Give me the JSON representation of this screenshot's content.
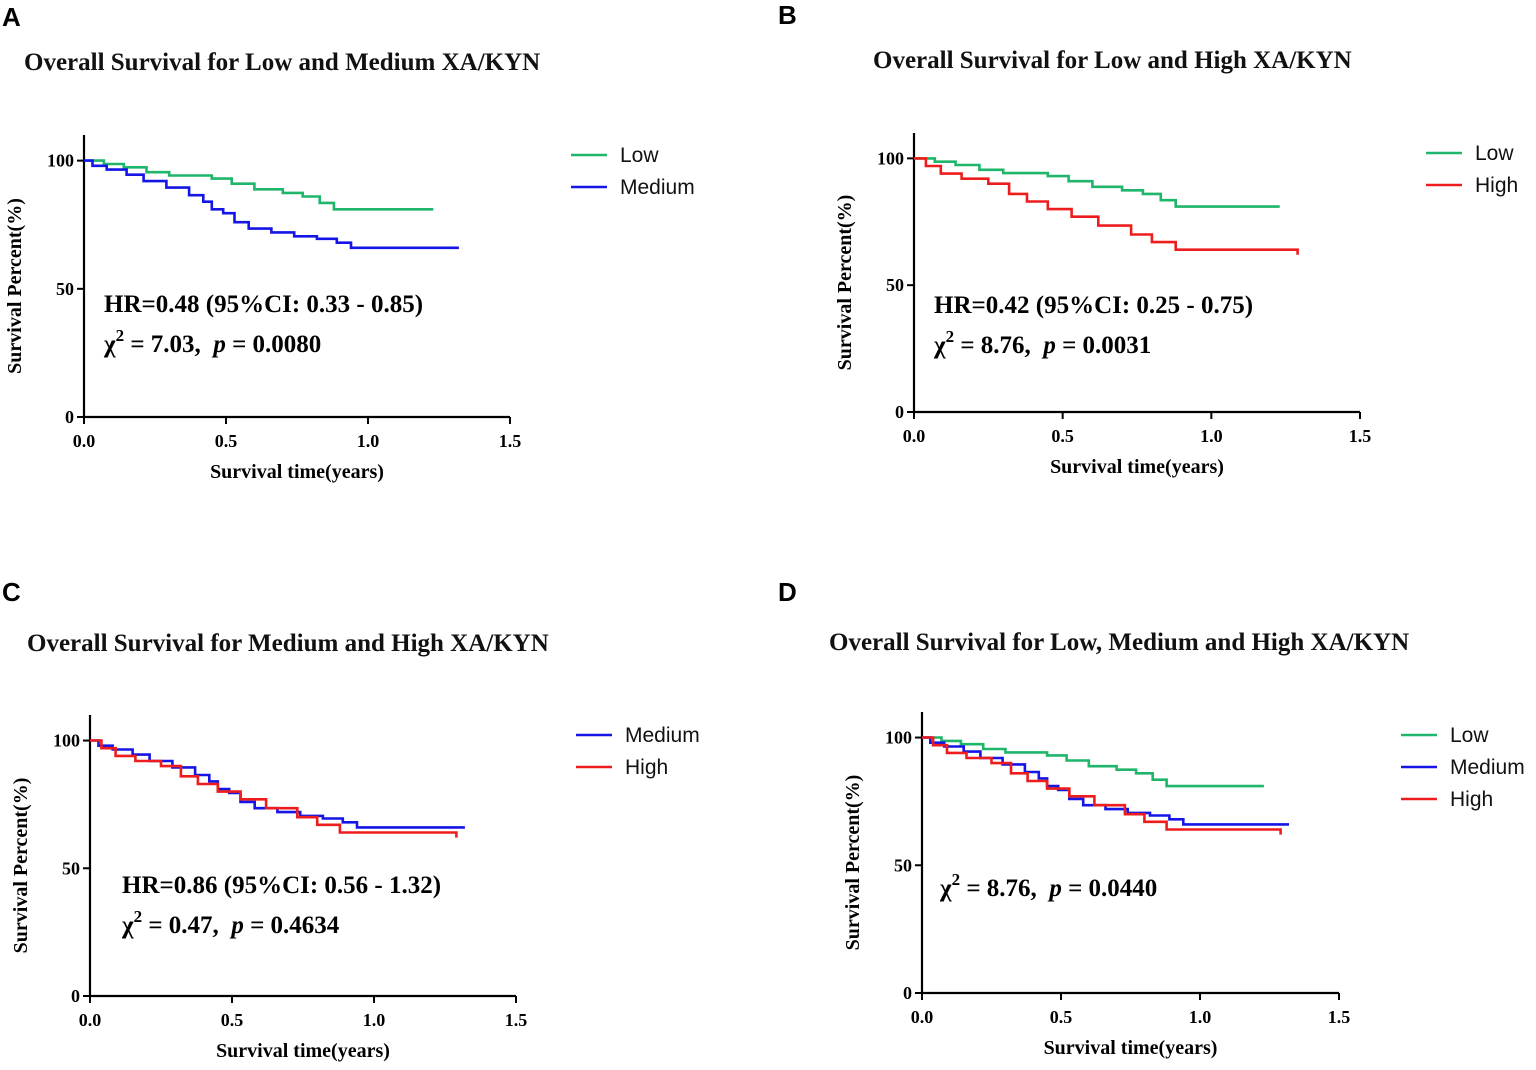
{
  "colors": {
    "Low": "#1fb56a",
    "Medium": "#1515e6",
    "High": "#ee1d1d"
  },
  "chart_data": [
    {
      "panel": "A",
      "type": "line",
      "title": "Overall Survival for Low and Medium XA/KYN",
      "xlabel": "Survival time(years)",
      "ylabel": "Survival Percent(%)",
      "xlim": [
        0,
        1.5
      ],
      "ylim": [
        0,
        110
      ],
      "xticks": [
        "0.0",
        "0.5",
        "1.0",
        "1.5"
      ],
      "yticks": [
        "0",
        "50",
        "100"
      ],
      "legend_position": "right",
      "series": [
        {
          "name": "Low",
          "x": [
            0,
            0.07,
            0.14,
            0.22,
            0.3,
            0.45,
            0.52,
            0.6,
            0.7,
            0.77,
            0.83,
            0.88,
            1.23
          ],
          "y": [
            100,
            98.7,
            97.4,
            95.5,
            94.2,
            93,
            91,
            88.8,
            87.4,
            86,
            83.5,
            81,
            81
          ]
        },
        {
          "name": "Medium",
          "x": [
            0,
            0.03,
            0.08,
            0.15,
            0.21,
            0.29,
            0.37,
            0.42,
            0.45,
            0.49,
            0.53,
            0.58,
            0.66,
            0.74,
            0.82,
            0.89,
            0.94,
            1.32
          ],
          "y": [
            100,
            98,
            96.5,
            94.5,
            92,
            89.5,
            86.5,
            84,
            81,
            79.5,
            76,
            73.5,
            72,
            70.5,
            69.5,
            68,
            66,
            66
          ]
        }
      ],
      "annotations": [
        "HR=0.48 (95%CI: 0.33 - 0.85)",
        "χ² = 7.03, p = 0.0080"
      ]
    },
    {
      "panel": "B",
      "type": "line",
      "title": "Overall Survival for Low and High XA/KYN",
      "xlabel": "Survival time(years)",
      "ylabel": "Survival Percent(%)",
      "xlim": [
        0,
        1.5
      ],
      "ylim": [
        0,
        110
      ],
      "xticks": [
        "0.0",
        "0.5",
        "1.0",
        "1.5"
      ],
      "yticks": [
        "0",
        "50",
        "100"
      ],
      "legend_position": "right",
      "series": [
        {
          "name": "Low",
          "x": [
            0,
            0.07,
            0.14,
            0.22,
            0.3,
            0.45,
            0.52,
            0.6,
            0.7,
            0.77,
            0.83,
            0.88,
            1.23
          ],
          "y": [
            100,
            98.7,
            97.4,
            95.5,
            94.2,
            93,
            91,
            88.8,
            87.4,
            86,
            83.5,
            81,
            81
          ]
        },
        {
          "name": "High",
          "x": [
            0,
            0.04,
            0.09,
            0.16,
            0.25,
            0.32,
            0.38,
            0.45,
            0.53,
            0.62,
            0.73,
            0.8,
            0.88,
            1.29
          ],
          "y": [
            100,
            97,
            94,
            92,
            90,
            86,
            83,
            80,
            77,
            73.5,
            70,
            67,
            64,
            62
          ]
        }
      ],
      "annotations": [
        "HR=0.42 (95%CI: 0.25 - 0.75)",
        "χ² = 8.76, p = 0.0031"
      ]
    },
    {
      "panel": "C",
      "type": "line",
      "title": "Overall Survival for Medium and High XA/KYN",
      "xlabel": "Survival time(years)",
      "ylabel": "Survival Percent(%)",
      "xlim": [
        0,
        1.5
      ],
      "ylim": [
        0,
        110
      ],
      "xticks": [
        "0.0",
        "0.5",
        "1.0",
        "1.5"
      ],
      "yticks": [
        "0",
        "50",
        "100"
      ],
      "legend_position": "right",
      "series": [
        {
          "name": "Medium",
          "x": [
            0,
            0.03,
            0.08,
            0.15,
            0.21,
            0.29,
            0.37,
            0.42,
            0.45,
            0.49,
            0.53,
            0.58,
            0.66,
            0.74,
            0.82,
            0.89,
            0.94,
            1.32
          ],
          "y": [
            100,
            98,
            96.5,
            94.5,
            92,
            89.5,
            86.5,
            84,
            81,
            79.5,
            76,
            73.5,
            72,
            70.5,
            69.5,
            68,
            66,
            66
          ]
        },
        {
          "name": "High",
          "x": [
            0,
            0.04,
            0.09,
            0.16,
            0.25,
            0.32,
            0.38,
            0.45,
            0.53,
            0.62,
            0.73,
            0.8,
            0.88,
            1.29
          ],
          "y": [
            100,
            97,
            94,
            92,
            90,
            86,
            83,
            80,
            77,
            73.5,
            70,
            67,
            64,
            62
          ]
        }
      ],
      "annotations": [
        "HR=0.86 (95%CI: 0.56 - 1.32)",
        "χ² = 0.47, p = 0.4634"
      ]
    },
    {
      "panel": "D",
      "type": "line",
      "title": "Overall Survival for Low, Medium and High XA/KYN",
      "xlabel": "Survival time(years)",
      "ylabel": "Survival Percent(%)",
      "xlim": [
        0,
        1.5
      ],
      "ylim": [
        0,
        110
      ],
      "xticks": [
        "0.0",
        "0.5",
        "1.0",
        "1.5"
      ],
      "yticks": [
        "0",
        "50",
        "100"
      ],
      "legend_position": "right",
      "series": [
        {
          "name": "Low",
          "x": [
            0,
            0.07,
            0.14,
            0.22,
            0.3,
            0.45,
            0.52,
            0.6,
            0.7,
            0.77,
            0.83,
            0.88,
            1.23
          ],
          "y": [
            100,
            98.7,
            97.4,
            95.5,
            94.2,
            93,
            91,
            88.8,
            87.4,
            86,
            83.5,
            81,
            81
          ]
        },
        {
          "name": "Medium",
          "x": [
            0,
            0.03,
            0.08,
            0.15,
            0.21,
            0.29,
            0.37,
            0.42,
            0.45,
            0.49,
            0.53,
            0.58,
            0.66,
            0.74,
            0.82,
            0.89,
            0.94,
            1.32
          ],
          "y": [
            100,
            98,
            96.5,
            94.5,
            92,
            89.5,
            86.5,
            84,
            81,
            79.5,
            76,
            73.5,
            72,
            70.5,
            69.5,
            68,
            66,
            66
          ]
        },
        {
          "name": "High",
          "x": [
            0,
            0.04,
            0.09,
            0.16,
            0.25,
            0.32,
            0.38,
            0.45,
            0.53,
            0.62,
            0.73,
            0.8,
            0.88,
            1.29
          ],
          "y": [
            100,
            97,
            94,
            92,
            90,
            86,
            83,
            80,
            77,
            73.5,
            70,
            67,
            64,
            62
          ]
        }
      ],
      "annotations": [
        "χ² = 8.76, p = 0.0440"
      ]
    }
  ]
}
